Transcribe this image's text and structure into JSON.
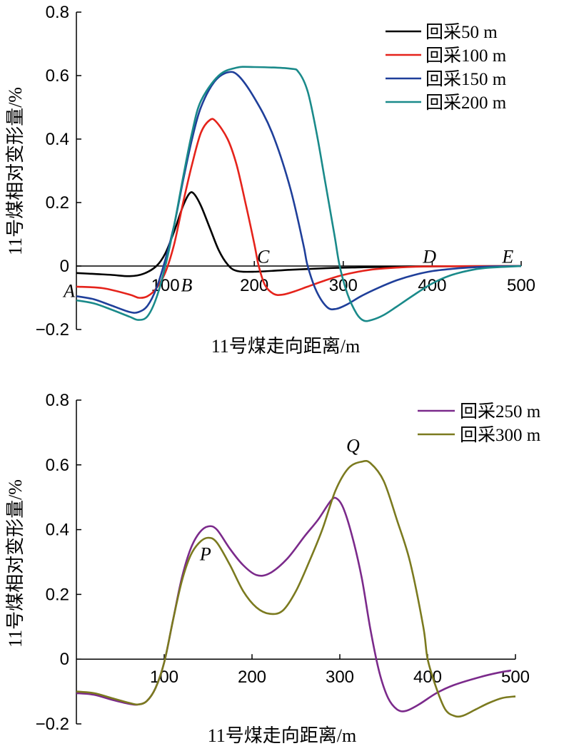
{
  "chart_data": [
    {
      "type": "line",
      "title": "",
      "xlabel": "11号煤走向距离/m",
      "ylabel": "11号煤相对变形量/%",
      "xlim": [
        0,
        500
      ],
      "ylim": [
        -0.2,
        0.8
      ],
      "xticks": [
        "100",
        "200",
        "300",
        "400",
        "500"
      ],
      "yticks": [
        "−0.2",
        "0",
        "0.2",
        "0.4",
        "0.6",
        "0.8"
      ],
      "legend_position": "top-right",
      "series": [
        {
          "name": "回采50 m",
          "color": "#000000",
          "points": [
            [
              0,
              -0.022
            ],
            [
              20,
              -0.025
            ],
            [
              40,
              -0.028
            ],
            [
              60,
              -0.032
            ],
            [
              75,
              -0.025
            ],
            [
              90,
              0.0
            ],
            [
              100,
              0.04
            ],
            [
              110,
              0.11
            ],
            [
              120,
              0.19
            ],
            [
              127,
              0.228
            ],
            [
              132,
              0.228
            ],
            [
              140,
              0.19
            ],
            [
              150,
              0.12
            ],
            [
              160,
              0.05
            ],
            [
              170,
              0.005
            ],
            [
              180,
              -0.015
            ],
            [
              200,
              -0.018
            ],
            [
              240,
              -0.012
            ],
            [
              280,
              -0.007
            ],
            [
              320,
              -0.004
            ],
            [
              360,
              -0.002
            ],
            [
              400,
              -0.001
            ],
            [
              500,
              0.0
            ]
          ]
        },
        {
          "name": "回采100 m",
          "color": "#e5231b",
          "points": [
            [
              0,
              -0.065
            ],
            [
              30,
              -0.07
            ],
            [
              60,
              -0.09
            ],
            [
              70,
              -0.1
            ],
            [
              80,
              -0.095
            ],
            [
              90,
              -0.07
            ],
            [
              100,
              -0.02
            ],
            [
              110,
              0.07
            ],
            [
              120,
              0.2
            ],
            [
              130,
              0.32
            ],
            [
              140,
              0.42
            ],
            [
              150,
              0.46
            ],
            [
              157,
              0.455
            ],
            [
              170,
              0.4
            ],
            [
              180,
              0.32
            ],
            [
              190,
              0.2
            ],
            [
              200,
              0.07
            ],
            [
              205,
              0.0
            ],
            [
              212,
              -0.06
            ],
            [
              222,
              -0.088
            ],
            [
              232,
              -0.09
            ],
            [
              245,
              -0.08
            ],
            [
              260,
              -0.065
            ],
            [
              280,
              -0.045
            ],
            [
              300,
              -0.028
            ],
            [
              330,
              -0.012
            ],
            [
              360,
              -0.005
            ],
            [
              400,
              -0.001
            ],
            [
              500,
              0.0
            ]
          ]
        },
        {
          "name": "回采150 m",
          "color": "#1f3f9a",
          "points": [
            [
              0,
              -0.095
            ],
            [
              20,
              -0.105
            ],
            [
              40,
              -0.125
            ],
            [
              60,
              -0.145
            ],
            [
              70,
              -0.145
            ],
            [
              80,
              -0.125
            ],
            [
              90,
              -0.07
            ],
            [
              100,
              0.02
            ],
            [
              110,
              0.13
            ],
            [
              120,
              0.27
            ],
            [
              130,
              0.4
            ],
            [
              140,
              0.5
            ],
            [
              155,
              0.58
            ],
            [
              170,
              0.61
            ],
            [
              182,
              0.6
            ],
            [
              200,
              0.53
            ],
            [
              220,
              0.42
            ],
            [
              240,
              0.25
            ],
            [
              255,
              0.07
            ],
            [
              260,
              0.0
            ],
            [
              270,
              -0.08
            ],
            [
              282,
              -0.13
            ],
            [
              292,
              -0.135
            ],
            [
              305,
              -0.12
            ],
            [
              320,
              -0.095
            ],
            [
              340,
              -0.068
            ],
            [
              360,
              -0.045
            ],
            [
              380,
              -0.028
            ],
            [
              400,
              -0.016
            ],
            [
              430,
              -0.007
            ],
            [
              460,
              -0.002
            ],
            [
              500,
              0.0
            ]
          ]
        },
        {
          "name": "回采200 m",
          "color": "#1a8a8a",
          "points": [
            [
              0,
              -0.108
            ],
            [
              20,
              -0.118
            ],
            [
              40,
              -0.138
            ],
            [
              60,
              -0.16
            ],
            [
              70,
              -0.17
            ],
            [
              80,
              -0.158
            ],
            [
              90,
              -0.1
            ],
            [
              100,
              0.0
            ],
            [
              110,
              0.13
            ],
            [
              120,
              0.28
            ],
            [
              130,
              0.42
            ],
            [
              140,
              0.52
            ],
            [
              160,
              0.6
            ],
            [
              180,
              0.625
            ],
            [
              200,
              0.627
            ],
            [
              240,
              0.622
            ],
            [
              250,
              0.61
            ],
            [
              260,
              0.55
            ],
            [
              270,
              0.42
            ],
            [
              280,
              0.26
            ],
            [
              290,
              0.1
            ],
            [
              296,
              0.0
            ],
            [
              305,
              -0.09
            ],
            [
              315,
              -0.15
            ],
            [
              323,
              -0.172
            ],
            [
              332,
              -0.17
            ],
            [
              345,
              -0.155
            ],
            [
              360,
              -0.128
            ],
            [
              380,
              -0.09
            ],
            [
              400,
              -0.055
            ],
            [
              420,
              -0.03
            ],
            [
              440,
              -0.015
            ],
            [
              460,
              -0.006
            ],
            [
              500,
              0.0
            ]
          ]
        }
      ],
      "annotations": [
        {
          "text": "A",
          "x": -8,
          "y": -0.078
        },
        {
          "text": "B",
          "x": 124,
          "y": -0.06
        },
        {
          "text": "C",
          "x": 210,
          "y": 0.03
        },
        {
          "text": "D",
          "x": 397,
          "y": 0.03
        },
        {
          "text": "E",
          "x": 485,
          "y": 0.03
        }
      ]
    },
    {
      "type": "line",
      "title": "",
      "xlabel": "11号煤走向距离/m",
      "ylabel": "11号煤相对变形量/%",
      "xlim": [
        0,
        500
      ],
      "ylim": [
        -0.2,
        0.8
      ],
      "xticks": [
        "100",
        "200",
        "300",
        "400",
        "500"
      ],
      "yticks": [
        "−0.2",
        "0",
        "0.2",
        "0.4",
        "0.6",
        "0.8"
      ],
      "legend_position": "top-right",
      "series": [
        {
          "name": "回采250 m",
          "color": "#7b2a8b",
          "points": [
            [
              0,
              -0.105
            ],
            [
              20,
              -0.11
            ],
            [
              40,
              -0.125
            ],
            [
              60,
              -0.138
            ],
            [
              70,
              -0.14
            ],
            [
              80,
              -0.13
            ],
            [
              90,
              -0.09
            ],
            [
              100,
              -0.01
            ],
            [
              110,
              0.12
            ],
            [
              120,
              0.25
            ],
            [
              130,
              0.34
            ],
            [
              140,
              0.39
            ],
            [
              150,
              0.41
            ],
            [
              160,
              0.4
            ],
            [
              175,
              0.34
            ],
            [
              190,
              0.29
            ],
            [
              205,
              0.26
            ],
            [
              220,
              0.265
            ],
            [
              240,
              0.31
            ],
            [
              260,
              0.38
            ],
            [
              275,
              0.43
            ],
            [
              290,
              0.49
            ],
            [
              297,
              0.495
            ],
            [
              305,
              0.46
            ],
            [
              315,
              0.37
            ],
            [
              325,
              0.25
            ],
            [
              335,
              0.09
            ],
            [
              345,
              -0.04
            ],
            [
              355,
              -0.12
            ],
            [
              365,
              -0.155
            ],
            [
              375,
              -0.16
            ],
            [
              390,
              -0.14
            ],
            [
              410,
              -0.105
            ],
            [
              430,
              -0.08
            ],
            [
              460,
              -0.055
            ],
            [
              480,
              -0.042
            ],
            [
              495,
              -0.035
            ]
          ]
        },
        {
          "name": "回采300 m",
          "color": "#7b7a1f",
          "points": [
            [
              0,
              -0.1
            ],
            [
              20,
              -0.105
            ],
            [
              40,
              -0.12
            ],
            [
              60,
              -0.135
            ],
            [
              70,
              -0.14
            ],
            [
              80,
              -0.13
            ],
            [
              90,
              -0.09
            ],
            [
              100,
              -0.01
            ],
            [
              110,
              0.12
            ],
            [
              120,
              0.24
            ],
            [
              130,
              0.32
            ],
            [
              140,
              0.36
            ],
            [
              150,
              0.375
            ],
            [
              160,
              0.36
            ],
            [
              175,
              0.29
            ],
            [
              190,
              0.21
            ],
            [
              205,
              0.16
            ],
            [
              220,
              0.14
            ],
            [
              235,
              0.15
            ],
            [
              250,
              0.21
            ],
            [
              265,
              0.3
            ],
            [
              280,
              0.4
            ],
            [
              295,
              0.52
            ],
            [
              310,
              0.59
            ],
            [
              325,
              0.61
            ],
            [
              335,
              0.605
            ],
            [
              350,
              0.55
            ],
            [
              365,
              0.43
            ],
            [
              380,
              0.3
            ],
            [
              395,
              0.1
            ],
            [
              400,
              0.0
            ],
            [
              410,
              -0.09
            ],
            [
              420,
              -0.155
            ],
            [
              430,
              -0.175
            ],
            [
              440,
              -0.175
            ],
            [
              455,
              -0.155
            ],
            [
              470,
              -0.135
            ],
            [
              485,
              -0.12
            ],
            [
              500,
              -0.115
            ]
          ]
        }
      ],
      "annotations": [
        {
          "text": "P",
          "x": 147,
          "y": 0.325
        },
        {
          "text": "Q",
          "x": 315,
          "y": 0.66
        }
      ]
    }
  ]
}
